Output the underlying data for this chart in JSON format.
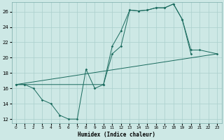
{
  "xlabel": "Humidex (Indice chaleur)",
  "xlim": [
    -0.5,
    23.5
  ],
  "ylim": [
    11.5,
    27.2
  ],
  "yticks": [
    12,
    14,
    16,
    18,
    20,
    22,
    24,
    26
  ],
  "xticks": [
    0,
    1,
    2,
    3,
    4,
    5,
    6,
    7,
    8,
    9,
    10,
    11,
    12,
    13,
    14,
    15,
    16,
    17,
    18,
    19,
    20,
    21,
    22,
    23
  ],
  "bg_color": "#cde8e5",
  "grid_color": "#aacfcc",
  "line_color": "#1a6b5e",
  "line1_x": [
    0,
    1,
    2,
    3,
    4,
    5,
    6,
    7,
    8,
    9,
    10,
    11,
    12,
    13,
    14,
    15,
    16,
    17,
    18,
    19,
    20
  ],
  "line1_y": [
    16.5,
    16.5,
    16.0,
    14.5,
    14.0,
    12.5,
    12.0,
    12.0,
    18.5,
    16.0,
    16.5,
    21.5,
    23.5,
    26.2,
    26.1,
    26.2,
    26.5,
    26.5,
    27.0,
    25.0,
    20.5
  ],
  "line2_x": [
    0,
    1,
    10,
    11,
    12,
    13,
    14,
    15,
    16,
    17,
    18,
    19,
    20,
    21,
    23
  ],
  "line2_y": [
    16.5,
    16.5,
    16.5,
    20.5,
    21.5,
    26.2,
    26.1,
    26.2,
    26.5,
    26.5,
    27.0,
    25.0,
    21.0,
    21.0,
    20.5
  ],
  "line3_x": [
    0,
    23
  ],
  "line3_y": [
    16.5,
    20.5
  ]
}
